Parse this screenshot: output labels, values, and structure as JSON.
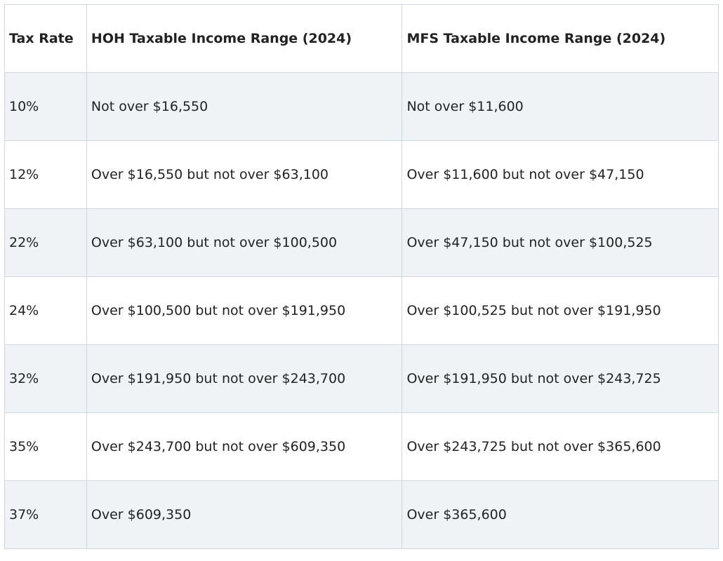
{
  "table": {
    "header": [
      "Tax Rate",
      "HOH Taxable Income Range (2024)",
      "MFS Taxable Income Range (2024)"
    ],
    "rows": [
      [
        "10%",
        "Not over $16,550",
        "Not over $11,600"
      ],
      [
        "12%",
        "Over $16,550 but not over $63,100",
        "Over $11,600 but not over $47,150"
      ],
      [
        "22%",
        "Over $63,100 but not over $100,500",
        "Over $47,150 but not over $100,525"
      ],
      [
        "24%",
        "Over $100,500 but not over $191,950",
        "Over $100,525 but not over $191,950"
      ],
      [
        "32%",
        "Over $191,950 but not over $243,700",
        "Over $191,950 but not over $243,725"
      ],
      [
        "35%",
        "Over $243,700 but not over $609,350",
        "Over $243,725 but not over $365,600"
      ],
      [
        "37%",
        "Over $609,350",
        "Over $365,600"
      ]
    ]
  }
}
